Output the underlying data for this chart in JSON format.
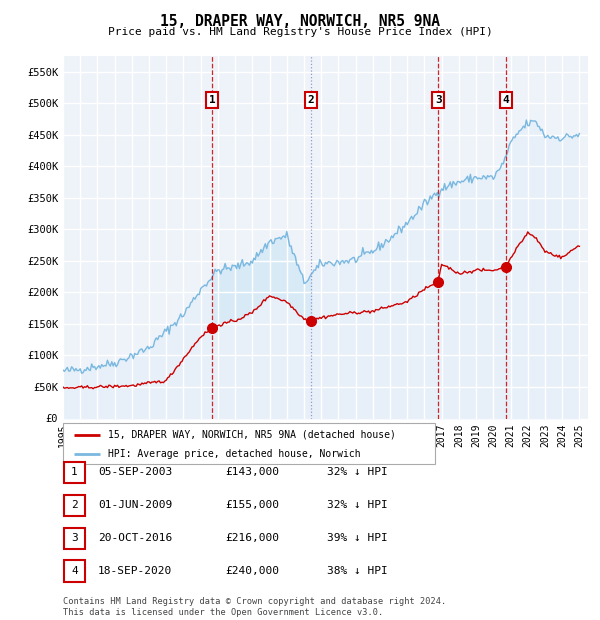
{
  "title": "15, DRAPER WAY, NORWICH, NR5 9NA",
  "subtitle": "Price paid vs. HM Land Registry's House Price Index (HPI)",
  "ylim": [
    0,
    575000
  ],
  "yticks": [
    0,
    50000,
    100000,
    150000,
    200000,
    250000,
    300000,
    350000,
    400000,
    450000,
    500000,
    550000
  ],
  "ytick_labels": [
    "£0",
    "£50K",
    "£100K",
    "£150K",
    "£200K",
    "£250K",
    "£300K",
    "£350K",
    "£400K",
    "£450K",
    "£500K",
    "£550K"
  ],
  "sales": [
    {
      "date_decimal": 2003.67,
      "price": 143000,
      "label": "1",
      "vline_color": "#cc0000",
      "vline_style": "--"
    },
    {
      "date_decimal": 2009.42,
      "price": 155000,
      "label": "2",
      "vline_color": "#8888bb",
      "vline_style": ":"
    },
    {
      "date_decimal": 2016.8,
      "price": 216000,
      "label": "3",
      "vline_color": "#cc0000",
      "vline_style": "--"
    },
    {
      "date_decimal": 2020.72,
      "price": 240000,
      "label": "4",
      "vline_color": "#cc0000",
      "vline_style": "--"
    }
  ],
  "hpi_color": "#7ab8e0",
  "hpi_fill_color": "#d8eaf7",
  "price_color": "#cc0000",
  "annotation_box_color": "#cc0000",
  "background_plot": "#eef3fa",
  "grid_color": "#ffffff",
  "legend_label_price": "15, DRAPER WAY, NORWICH, NR5 9NA (detached house)",
  "legend_label_hpi": "HPI: Average price, detached house, Norwich",
  "footer": "Contains HM Land Registry data © Crown copyright and database right 2024.\nThis data is licensed under the Open Government Licence v3.0.",
  "table_rows": [
    [
      "1",
      "05-SEP-2003",
      "£143,000",
      "32% ↓ HPI"
    ],
    [
      "2",
      "01-JUN-2009",
      "£155,000",
      "32% ↓ HPI"
    ],
    [
      "3",
      "20-OCT-2016",
      "£216,000",
      "39% ↓ HPI"
    ],
    [
      "4",
      "18-SEP-2020",
      "£240,000",
      "38% ↓ HPI"
    ]
  ]
}
